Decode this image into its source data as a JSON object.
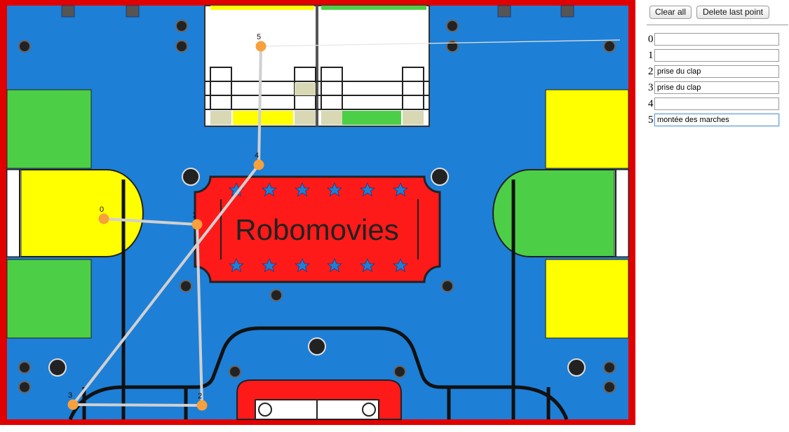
{
  "toolbar": {
    "clear_label": "Clear all",
    "delete_label": "Delete last point"
  },
  "board": {
    "title": "Robomovies",
    "border_color": "#e00000",
    "field_color": "#1e7fd6",
    "yellow": "#ffff00",
    "green": "#4ccf46",
    "red": "#ff1a1a"
  },
  "points": [
    {
      "label": "0",
      "color": "#f7a03c"
    },
    {
      "label": "1",
      "color": "#f7a03c"
    },
    {
      "label": "2",
      "color": "#f7a03c"
    },
    {
      "label": "3",
      "color": "#f7a03c"
    },
    {
      "label": "4",
      "color": "#f7a03c"
    },
    {
      "label": "5",
      "color": "#f7a03c"
    }
  ],
  "path_color": "#d0d0d0",
  "rows": [
    {
      "index": "0",
      "value": ""
    },
    {
      "index": "1",
      "value": ""
    },
    {
      "index": "2",
      "value": "prise du clap"
    },
    {
      "index": "3",
      "value": "prise du clap"
    },
    {
      "index": "4",
      "value": ""
    },
    {
      "index": "5",
      "value": "montée des marches"
    }
  ]
}
